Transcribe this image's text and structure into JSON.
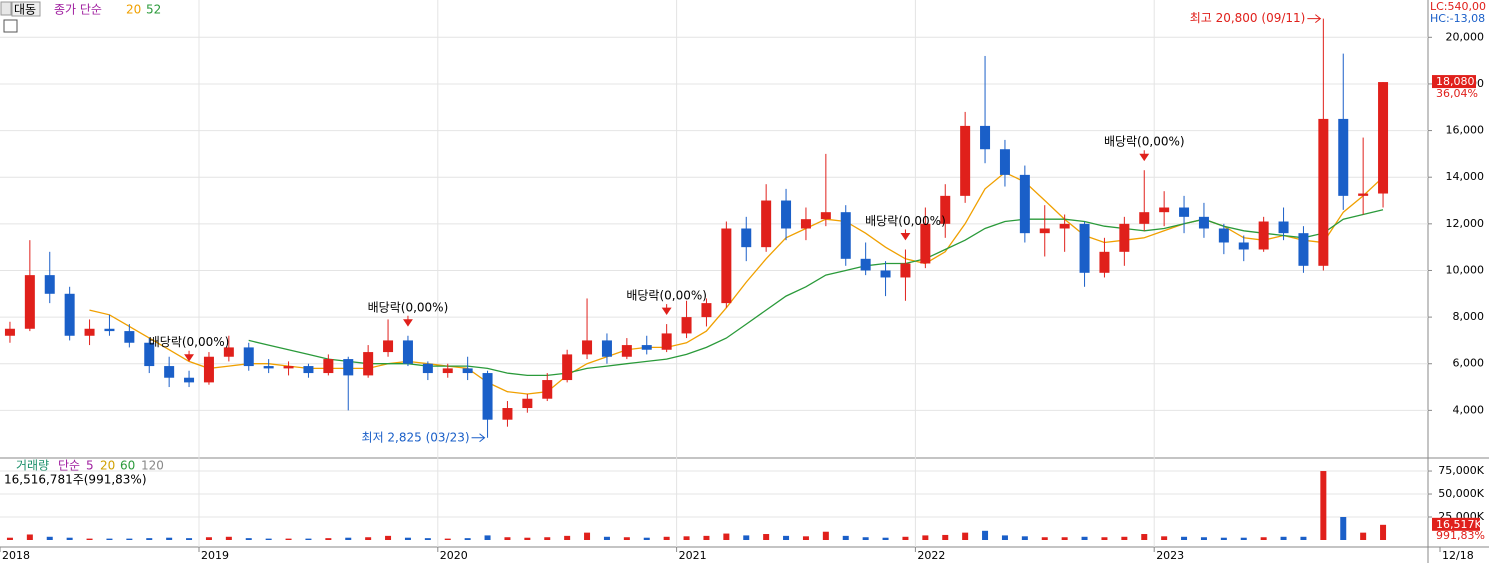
{
  "header": {
    "name": "대동",
    "price_legend": "종가 단순",
    "last_price": "18,080",
    "last_change": "36,04%",
    "lc": "LC:540,00",
    "hc": "HC:-13,08",
    "volume_info": "16,516,781주(991,83%)",
    "last_volume": "16,517K",
    "last_volume_change": "991,83%",
    "volume_legend": "단순",
    "volume_ma_labels": [
      "5",
      "20",
      "60",
      "120"
    ]
  },
  "chart_data": [
    {
      "type": "candlestick",
      "categories": [
        "2018",
        null,
        null,
        null,
        null,
        null,
        null,
        null,
        null,
        null,
        "2019",
        null,
        null,
        null,
        null,
        null,
        null,
        null,
        null,
        null,
        null,
        null,
        "2020",
        null,
        null,
        null,
        null,
        null,
        null,
        null,
        null,
        null,
        null,
        null,
        "2021",
        null,
        null,
        null,
        null,
        null,
        null,
        null,
        null,
        null,
        null,
        null,
        "2022",
        null,
        null,
        null,
        null,
        null,
        null,
        null,
        null,
        null,
        null,
        null,
        "2023",
        null,
        null,
        null,
        null,
        null,
        null,
        null,
        null,
        null,
        null,
        "12/18"
      ],
      "open": [
        7200,
        7500,
        9800,
        9000,
        7200,
        7500,
        7400,
        6900,
        5900,
        5400,
        5200,
        6300,
        6700,
        5900,
        5800,
        5900,
        5600,
        6200,
        5500,
        6500,
        7000,
        6000,
        5600,
        5800,
        5600,
        3600,
        4100,
        4500,
        5300,
        6400,
        7000,
        6300,
        6800,
        6600,
        7300,
        8000,
        8600,
        11800,
        11000,
        13000,
        11800,
        12200,
        12500,
        10500,
        10000,
        9700,
        10300,
        12000,
        13200,
        16200,
        15200,
        14100,
        11600,
        11800,
        12000,
        9900,
        10800,
        12000,
        12500,
        12700,
        12300,
        11800,
        11200,
        10900,
        12100,
        11600,
        10200,
        16500,
        13200,
        13300
      ],
      "high": [
        7800,
        11300,
        10800,
        9300,
        7900,
        8100,
        7700,
        7100,
        6300,
        5700,
        6500,
        7200,
        6900,
        6200,
        6100,
        6000,
        6400,
        6300,
        6800,
        7900,
        7200,
        6100,
        6000,
        6300,
        5700,
        4400,
        4700,
        5600,
        6600,
        8800,
        7300,
        7100,
        7200,
        7700,
        8700,
        8800,
        12100,
        12300,
        13700,
        13500,
        12700,
        15000,
        12800,
        11200,
        10400,
        10900,
        12700,
        13700,
        16800,
        19200,
        15600,
        14500,
        12800,
        12400,
        12100,
        11400,
        12300,
        14300,
        13400,
        13200,
        12900,
        12000,
        11500,
        12300,
        12700,
        11900,
        20800,
        19300,
        15700,
        18080
      ],
      "low": [
        6900,
        7400,
        8600,
        7000,
        6800,
        7200,
        6700,
        5600,
        5000,
        5000,
        5100,
        6100,
        5700,
        5600,
        5500,
        5400,
        5500,
        4000,
        5400,
        6300,
        5900,
        5300,
        5400,
        5300,
        2825,
        3300,
        3900,
        4400,
        5200,
        6200,
        6000,
        6200,
        6400,
        6500,
        7100,
        7600,
        8400,
        10400,
        10800,
        11300,
        11300,
        11900,
        10200,
        9800,
        8900,
        8700,
        10100,
        11400,
        12900,
        14600,
        13600,
        11200,
        10600,
        10800,
        9300,
        9700,
        10200,
        11700,
        11900,
        11600,
        11400,
        10700,
        10400,
        10800,
        11300,
        9900,
        10000,
        12600,
        12400,
        12700
      ],
      "close": [
        7500,
        9800,
        9000,
        7200,
        7500,
        7400,
        6900,
        5900,
        5400,
        5200,
        6300,
        6700,
        5900,
        5800,
        5900,
        5600,
        6200,
        5500,
        6500,
        7000,
        6000,
        5600,
        5800,
        5600,
        3600,
        4100,
        4500,
        5300,
        6400,
        7000,
        6300,
        6800,
        6600,
        7300,
        8000,
        8600,
        11800,
        11000,
        13000,
        11800,
        12200,
        12500,
        10500,
        10000,
        9700,
        10300,
        12000,
        13200,
        16200,
        15200,
        14100,
        11600,
        11800,
        12000,
        9900,
        10800,
        12000,
        12500,
        12700,
        12300,
        11800,
        11200,
        10900,
        12100,
        11600,
        10200,
        16500,
        13200,
        13300,
        18080
      ],
      "up_color": "#e0201b",
      "down_color": "#1a5fc8",
      "series": [
        {
          "name": "20",
          "color": "#f0a000",
          "values": [
            null,
            null,
            null,
            null,
            8300,
            8100,
            7600,
            7100,
            6600,
            6100,
            5800,
            5900,
            6000,
            6000,
            5900,
            5800,
            5800,
            5800,
            5800,
            6000,
            6100,
            6000,
            5900,
            5800,
            5200,
            4800,
            4700,
            4800,
            5500,
            6000,
            6300,
            6600,
            6700,
            6700,
            6900,
            7400,
            8400,
            9500,
            10500,
            11400,
            11800,
            12200,
            12100,
            11600,
            11000,
            10500,
            10300,
            10800,
            12000,
            13500,
            14200,
            13800,
            13000,
            12200,
            11500,
            11200,
            11300,
            11400,
            11700,
            12000,
            12200,
            11900,
            11400,
            11300,
            11500,
            11300,
            11200,
            12500,
            13200,
            14000
          ]
        },
        {
          "name": "52",
          "color": "#2a9a3a",
          "values": [
            null,
            null,
            null,
            null,
            null,
            null,
            null,
            null,
            null,
            null,
            null,
            null,
            7000,
            6800,
            6600,
            6400,
            6200,
            6100,
            6000,
            6000,
            6000,
            5900,
            5900,
            5900,
            5800,
            5600,
            5500,
            5500,
            5600,
            5800,
            5900,
            6000,
            6100,
            6200,
            6400,
            6700,
            7100,
            7700,
            8300,
            8900,
            9300,
            9800,
            10000,
            10200,
            10300,
            10300,
            10500,
            10900,
            11300,
            11800,
            12100,
            12200,
            12200,
            12200,
            12100,
            11900,
            11800,
            11700,
            11800,
            12000,
            12200,
            11900,
            11700,
            11600,
            11500,
            11400,
            11600,
            12200,
            12400,
            12600
          ]
        }
      ],
      "ylim": [
        2000,
        21600
      ],
      "yticks": [
        {
          "value": 4000,
          "label": "4,000"
        },
        {
          "value": 6000,
          "label": "6,000"
        },
        {
          "value": 8000,
          "label": "8,000"
        },
        {
          "value": 10000,
          "label": "10,000"
        },
        {
          "value": 12000,
          "label": "12,000"
        },
        {
          "value": 14000,
          "label": "14,000"
        },
        {
          "value": 16000,
          "label": "16,000"
        },
        {
          "value": 18000,
          "label": "18,000"
        },
        {
          "value": 20000,
          "label": "20,000"
        }
      ],
      "grid": true,
      "annotations": {
        "high": "최고 20,800 (09/11)",
        "low": "최저 2,825 (03/23)",
        "dividends": [
          "배당락(0,00%)",
          "배당락(0,00%)",
          "배당락(0,00%)",
          "배당락(0,00%)",
          "배당락(0,00%)"
        ]
      }
    },
    {
      "type": "bar",
      "series": [
        {
          "name": "거래량",
          "values": [
            2500,
            6000,
            3500,
            2500,
            1500,
            1500,
            1500,
            2000,
            2500,
            2000,
            3000,
            3500,
            2000,
            1500,
            1500,
            1500,
            2000,
            2500,
            3000,
            4500,
            2500,
            2000,
            1500,
            2000,
            5000,
            3000,
            2500,
            3000,
            4500,
            8000,
            3500,
            3000,
            2500,
            3500,
            4000,
            4500,
            7000,
            5000,
            6500,
            4500,
            4000,
            9000,
            4500,
            3000,
            2500,
            3500,
            5000,
            5500,
            8000,
            10000,
            5000,
            4000,
            3000,
            3000,
            3500,
            3000,
            3500,
            6500,
            4000,
            3500,
            3000,
            2500,
            2500,
            3000,
            3500,
            3500,
            75000,
            25000,
            8000,
            16517
          ]
        }
      ],
      "ylim": [
        0,
        87000
      ],
      "yticks": [
        {
          "value": 25000,
          "label": "25,000K"
        },
        {
          "value": 50000,
          "label": "50,000K"
        },
        {
          "value": 75000,
          "label": "75,000K"
        }
      ],
      "grid": true
    }
  ]
}
